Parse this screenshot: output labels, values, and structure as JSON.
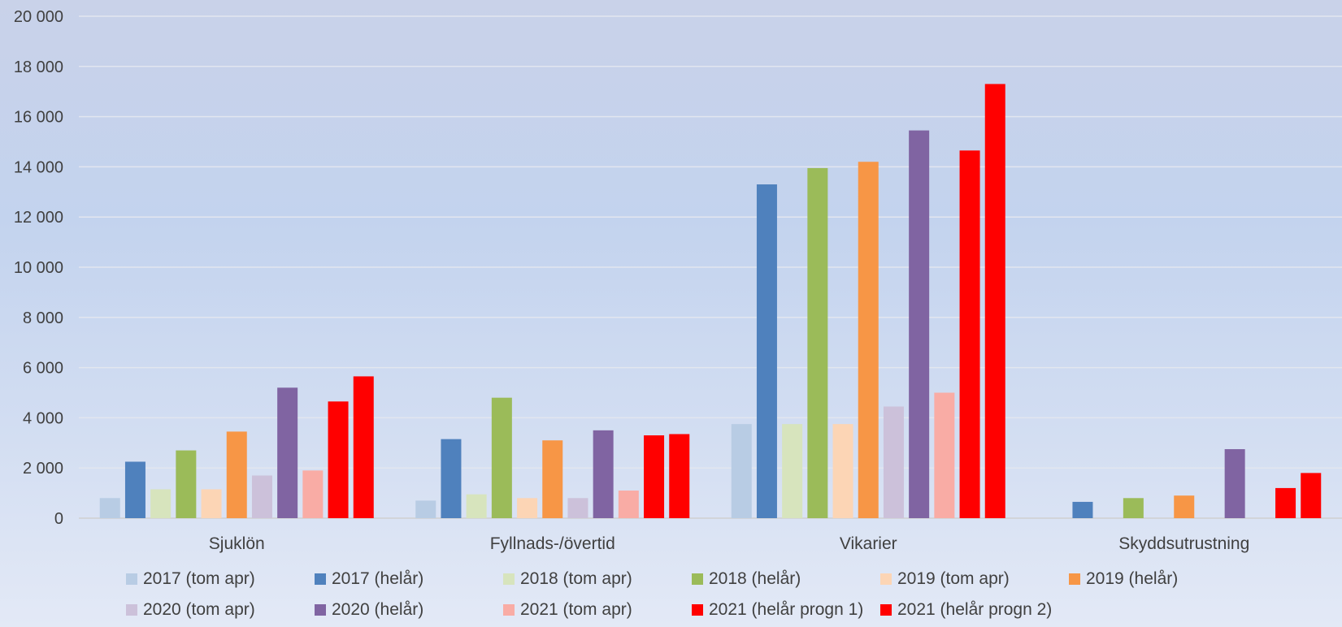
{
  "chart_data": {
    "type": "bar",
    "title": "",
    "xlabel": "",
    "ylabel": "",
    "ylim": [
      0,
      20000
    ],
    "yticks": [
      0,
      2000,
      4000,
      6000,
      8000,
      10000,
      12000,
      14000,
      16000,
      18000,
      20000
    ],
    "ytick_labels": [
      "0",
      "2 000",
      "4 000",
      "6 000",
      "8 000",
      "10 000",
      "12 000",
      "14 000",
      "16 000",
      "18 000",
      "20 000"
    ],
    "grid": true,
    "legend_position": "bottom",
    "categories": [
      "Sjuklön",
      "Fyllnads-/övertid",
      "Vikarier",
      "Skyddsutrustning"
    ],
    "series": [
      {
        "name": "2017 (tom apr)",
        "color": "#b8cce4",
        "values": [
          800,
          700,
          3750,
          0
        ]
      },
      {
        "name": "2017 (helår)",
        "color": "#4f81bd",
        "values": [
          2250,
          3150,
          13300,
          650
        ]
      },
      {
        "name": "2018 (tom apr)",
        "color": "#d7e4bd",
        "values": [
          1150,
          950,
          3750,
          0
        ]
      },
      {
        "name": "2018 (helår)",
        "color": "#9bbb59",
        "values": [
          2700,
          4800,
          13950,
          800
        ]
      },
      {
        "name": "2019 (tom apr)",
        "color": "#fcd5b5",
        "values": [
          1150,
          800,
          3750,
          0
        ]
      },
      {
        "name": "2019 (helår)",
        "color": "#f79646",
        "values": [
          3450,
          3100,
          14200,
          900
        ]
      },
      {
        "name": "2020 (tom apr)",
        "color": "#ccc1da",
        "values": [
          1700,
          800,
          4450,
          0
        ]
      },
      {
        "name": "2020 (helår)",
        "color": "#8064a2",
        "values": [
          5200,
          3500,
          15450,
          2750
        ]
      },
      {
        "name": "2021 (tom apr)",
        "color": "#f9aca5",
        "values": [
          1900,
          1100,
          5000,
          0
        ]
      },
      {
        "name": "2021 (helår progn 1)",
        "color": "#ff0000",
        "values": [
          4650,
          3300,
          14650,
          1200
        ]
      },
      {
        "name": "2021 (helår progn 2)",
        "color": "#ff0000",
        "values": [
          5650,
          3350,
          17300,
          1800
        ]
      }
    ]
  }
}
